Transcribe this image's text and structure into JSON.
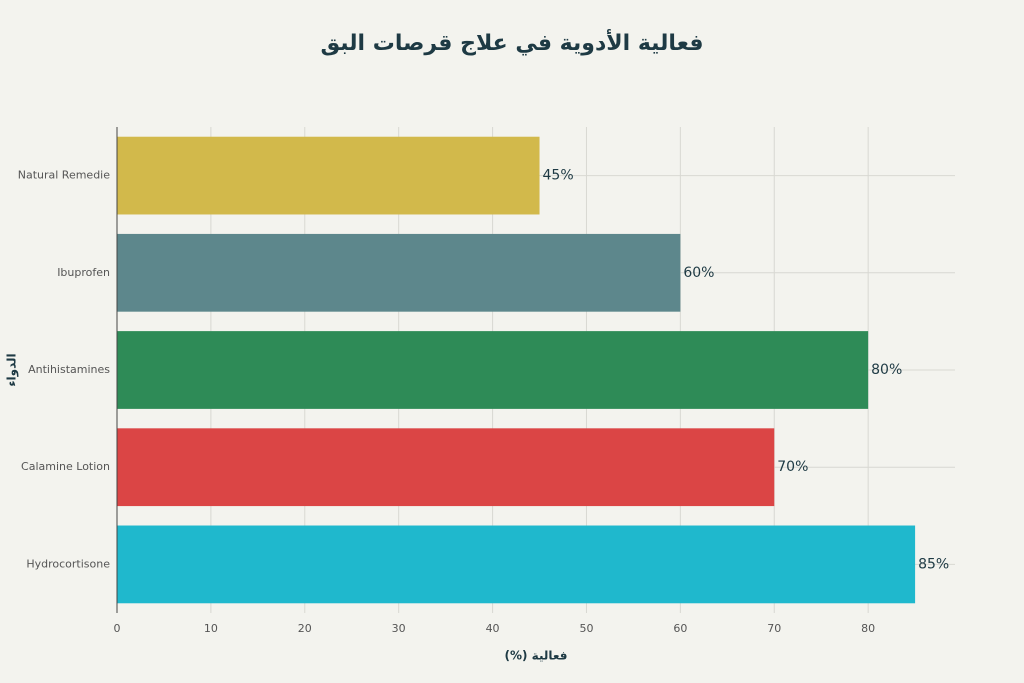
{
  "chart_data": {
    "type": "bar",
    "orientation": "horizontal",
    "title": "فعالية الأدوية في علاج قرصات البق",
    "x_label": "فعالية (%)",
    "y_label": "الدواء",
    "categories": [
      "Natural Remedie",
      "Ibuprofen",
      "Antihistamines",
      "Calamine Lotion",
      "Hydrocortisone"
    ],
    "values": [
      45,
      60,
      80,
      70,
      85
    ],
    "value_labels": [
      "45%",
      "60%",
      "80%",
      "70%",
      "85%"
    ],
    "colors": [
      "#d2b94b",
      "#5d878c",
      "#2e8b57",
      "#db4545",
      "#1fb8cd"
    ],
    "xlim": [
      0,
      89.25
    ],
    "xticks": [
      0,
      10,
      20,
      30,
      40,
      50,
      60,
      70,
      80
    ],
    "grid": true
  }
}
